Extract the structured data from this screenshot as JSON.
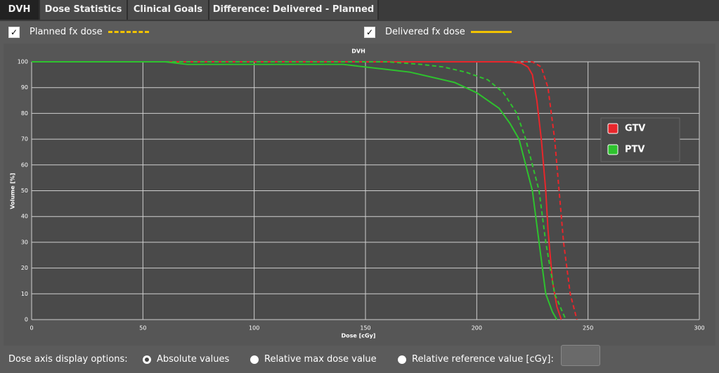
{
  "tabs": [
    "DVH",
    "Dose Statistics",
    "Clinical Goals",
    "Difference: Delivered - Planned"
  ],
  "toggles": [
    {
      "label": "Planned fx dose",
      "checked": true,
      "style": "dashed",
      "color": "#f2c300"
    },
    {
      "label": "Delivered fx dose",
      "checked": true,
      "style": "solid",
      "color": "#f2c300"
    }
  ],
  "chart_data": {
    "type": "line",
    "title": "DVH",
    "xlabel": "Dose [cGy]",
    "ylabel": "Volume [%]",
    "xlim": [
      0,
      300
    ],
    "xticks": [
      0,
      50,
      100,
      150,
      200,
      250,
      300
    ],
    "ylim": [
      0,
      100
    ],
    "yticks": [
      0,
      10,
      20,
      30,
      40,
      50,
      60,
      70,
      80,
      90,
      100
    ],
    "grid": true,
    "legend": [
      {
        "name": "GTV",
        "color": "#e8262b"
      },
      {
        "name": "PTV",
        "color": "#2ec22e"
      }
    ],
    "series": [
      {
        "color": "#e8262b",
        "style": "solid",
        "x": [
          0,
          215,
          220,
          223,
          225,
          227,
          229,
          231,
          232,
          234,
          236,
          238
        ],
        "values": [
          100,
          100,
          99.5,
          98,
          95,
          85,
          70,
          50,
          35,
          15,
          5,
          0
        ]
      },
      {
        "color": "#e8262b",
        "style": "dashed",
        "x": [
          0,
          225,
          229,
          232,
          235,
          237,
          239,
          242,
          245
        ],
        "values": [
          100,
          100,
          98,
          90,
          70,
          50,
          30,
          10,
          0
        ]
      },
      {
        "color": "#2ec22e",
        "style": "solid",
        "x": [
          0,
          60,
          70,
          140,
          150,
          160,
          170,
          180,
          190,
          200,
          210,
          215,
          219,
          222,
          225,
          228,
          231,
          234,
          236
        ],
        "values": [
          100,
          100,
          99,
          99,
          98,
          97,
          96,
          94,
          92,
          88,
          82,
          76,
          70,
          60,
          50,
          30,
          10,
          3,
          0
        ]
      },
      {
        "color": "#2ec22e",
        "style": "dashed",
        "x": [
          0,
          160,
          175,
          185,
          195,
          205,
          212,
          218,
          222,
          228,
          231,
          235,
          240
        ],
        "values": [
          100,
          100,
          99,
          98,
          96,
          93,
          88,
          80,
          70,
          50,
          30,
          10,
          0
        ]
      }
    ]
  },
  "options": {
    "label": "Dose axis display options:",
    "choices": [
      {
        "label": "Absolute values",
        "selected": true
      },
      {
        "label": "Relative max dose value",
        "selected": false
      },
      {
        "label": "Relative reference value [cGy]:",
        "selected": false
      }
    ]
  }
}
